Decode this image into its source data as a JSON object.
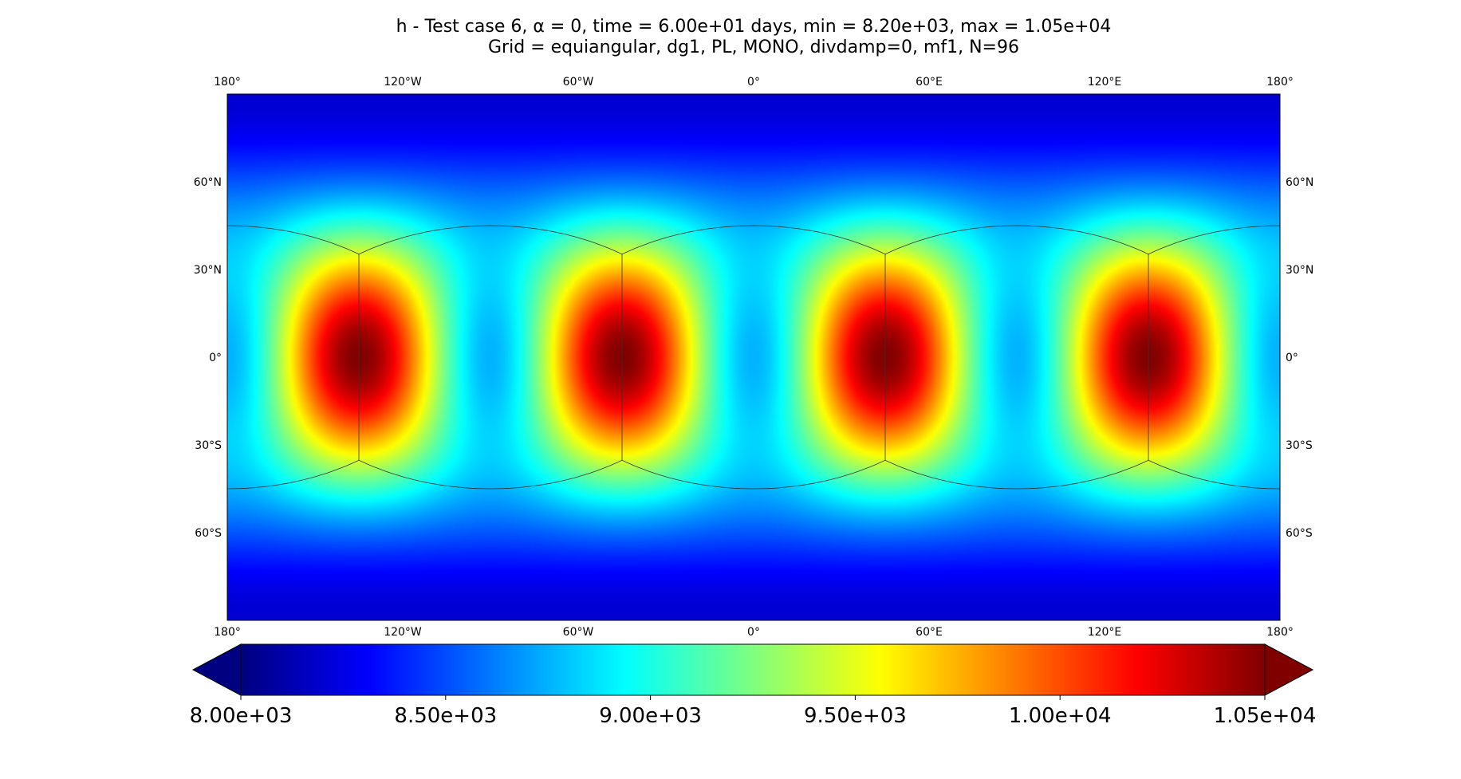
{
  "chart_data": {
    "type": "heatmap",
    "title_line1": "h - Test case 6, α = 0, time = 6.00e+01 days, min = 8.20e+03, max = 1.05e+04",
    "title_line2": "Grid = equiangular, dg1, PL, MONO, divdamp=0, mf1, N=96",
    "projection": "equirectangular (plate carrée)",
    "colormap": "jet",
    "variable": "h",
    "time_days": 60,
    "min": 8200,
    "max": 10500,
    "wavenumber": 4,
    "xlim": [
      -180,
      180
    ],
    "ylim": [
      -90,
      90
    ],
    "xticks": [
      -180,
      -120,
      -60,
      0,
      60,
      120,
      180
    ],
    "xtick_labels": [
      "180°",
      "120°W",
      "60°W",
      "0°",
      "60°E",
      "120°E",
      "180°"
    ],
    "yticks": [
      60,
      30,
      0,
      -30,
      -60
    ],
    "ytick_labels": [
      "60°N",
      "30°N",
      "0°",
      "30°S",
      "60°S"
    ],
    "colorbar": {
      "vmin": 8000,
      "vmax": 10500,
      "extend": "both",
      "orientation": "horizontal",
      "ticks": [
        8000,
        8500,
        9000,
        9500,
        10000,
        10500
      ],
      "tick_labels": [
        "8.00e+03",
        "8.50e+03",
        "9.00e+03",
        "9.50e+03",
        "1.00e+04",
        "1.05e+04"
      ]
    },
    "cubed_sphere_panel_edges": {
      "meridians": [
        -135,
        -45,
        45,
        135
      ],
      "corner_lat": 35.26
    }
  }
}
